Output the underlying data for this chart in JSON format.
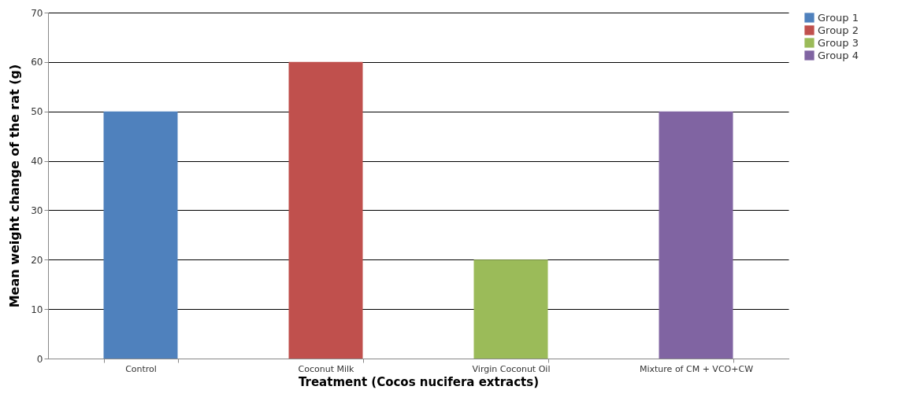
{
  "chart_data": {
    "type": "bar",
    "xlabel": "Treatment (Cocos nucifera extracts)",
    "ylabel": "Mean weight change of the rat (g)",
    "categories": [
      "Control",
      "Coconut Milk",
      "Virgin Coconut Oil",
      "Mixture of CM + VCO+CW"
    ],
    "series": [
      {
        "name": "Group 1",
        "color": "#4f81bd",
        "values": [
          50,
          null,
          null,
          null
        ]
      },
      {
        "name": "Group 2",
        "color": "#c0504d",
        "values": [
          null,
          60,
          null,
          null
        ]
      },
      {
        "name": "Group 3",
        "color": "#9bbb59",
        "values": [
          null,
          null,
          20,
          null
        ]
      },
      {
        "name": "Group 4",
        "color": "#8064a2",
        "values": [
          null,
          null,
          null,
          50
        ]
      }
    ],
    "ylim": [
      0,
      70
    ],
    "yticks": [
      0,
      10,
      20,
      30,
      40,
      50,
      60,
      70
    ],
    "grid": "y",
    "legend": "right"
  }
}
